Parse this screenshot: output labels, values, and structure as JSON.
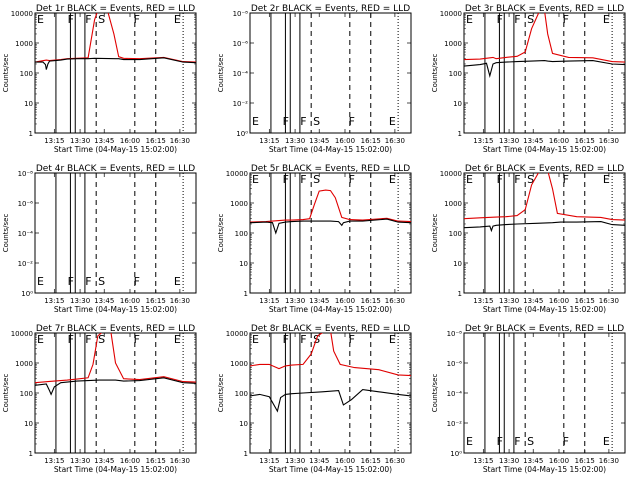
{
  "figure": {
    "colors": {
      "events": "#000000",
      "lld": "#e00000",
      "background": "#ffffff"
    },
    "xtick_labels": [
      "13:15",
      "13:30",
      "13:45",
      "16:00",
      "16:15",
      "16:30"
    ],
    "xlabel": "Start Time (04-May-15 15:02:00)",
    "ylabel": "Counts/sec",
    "ylabels_log": [
      "1",
      "10",
      "100",
      "1000",
      "10000"
    ],
    "ylabels_empty": [
      "10⁰",
      "10⁻²",
      "10⁻⁴",
      "10⁻⁶",
      "10⁻⁸"
    ],
    "event_letters": [
      "E",
      "F",
      "F",
      "S",
      "F",
      "E"
    ]
  },
  "chart_data": [
    {
      "id": "1r",
      "title": "Det 1r BLACK = Events, RED = LLD",
      "type": "line",
      "empty": false,
      "xlabel": "Start Time (04-May-15 15:02:00)",
      "ylabel": "Counts/sec",
      "ylim": [
        1,
        10000
      ],
      "yscale": "log",
      "series": [
        {
          "name": "LLD",
          "color": "#e00000",
          "x": [
            0,
            0.07,
            0.09,
            0.16,
            0.2,
            0.26,
            0.33,
            0.37,
            0.39,
            0.41,
            0.45,
            0.49,
            0.52,
            0.55,
            0.65,
            0.8,
            0.92,
            1
          ],
          "values": [
            230,
            270,
            260,
            280,
            300,
            310,
            320,
            6000,
            12000,
            12000,
            12000,
            2000,
            350,
            310,
            300,
            330,
            240,
            230
          ]
        },
        {
          "name": "Events",
          "color": "#000000",
          "x": [
            0,
            0.05,
            0.065,
            0.07,
            0.08,
            0.09,
            0.16,
            0.2,
            0.26,
            0.33,
            0.37,
            0.5,
            0.52,
            0.55,
            0.65,
            0.8,
            0.92,
            1
          ],
          "values": [
            230,
            230,
            190,
            130,
            200,
            250,
            270,
            290,
            300,
            300,
            310,
            300,
            300,
            280,
            280,
            320,
            230,
            220
          ]
        }
      ]
    },
    {
      "id": "2r",
      "title": "Det 2r BLACK = Events, RED = LLD",
      "type": "line",
      "empty": true,
      "series": []
    },
    {
      "id": "3r",
      "title": "Det 3r BLACK = Events, RED = LLD",
      "type": "line",
      "empty": false,
      "xlabel": "Start Time (04-May-15 15:02:00)",
      "ylabel": "Counts/sec",
      "ylim": [
        1,
        10000
      ],
      "yscale": "log",
      "series": [
        {
          "name": "LLD",
          "color": "#e00000",
          "x": [
            0,
            0.1,
            0.18,
            0.2,
            0.26,
            0.33,
            0.38,
            0.42,
            0.47,
            0.5,
            0.52,
            0.55,
            0.65,
            0.8,
            0.92,
            1
          ],
          "values": [
            280,
            290,
            330,
            300,
            330,
            360,
            500,
            3000,
            12000,
            12000,
            2000,
            450,
            330,
            320,
            240,
            230
          ]
        },
        {
          "name": "Events",
          "color": "#000000",
          "x": [
            0,
            0.1,
            0.14,
            0.16,
            0.18,
            0.2,
            0.26,
            0.33,
            0.42,
            0.5,
            0.52,
            0.55,
            0.65,
            0.8,
            0.92,
            1
          ],
          "values": [
            170,
            190,
            210,
            80,
            200,
            220,
            230,
            240,
            250,
            260,
            250,
            240,
            250,
            260,
            200,
            190
          ]
        }
      ]
    },
    {
      "id": "4r",
      "title": "Det 4r BLACK = Events, RED = LLD",
      "type": "line",
      "empty": true,
      "series": []
    },
    {
      "id": "5r",
      "title": "Det 5r BLACK = Events, RED = LLD",
      "type": "line",
      "empty": false,
      "xlabel": "Start Time (04-May-15 15:02:00)",
      "ylabel": "Counts/sec",
      "ylim": [
        1,
        10000
      ],
      "yscale": "log",
      "series": [
        {
          "name": "LLD",
          "color": "#e00000",
          "x": [
            0,
            0.1,
            0.18,
            0.22,
            0.26,
            0.33,
            0.37,
            0.4,
            0.43,
            0.47,
            0.5,
            0.53,
            0.57,
            0.62,
            0.7,
            0.85,
            0.92,
            1
          ],
          "values": [
            230,
            240,
            260,
            270,
            270,
            280,
            300,
            900,
            2500,
            2700,
            2600,
            1500,
            330,
            280,
            270,
            310,
            250,
            240
          ]
        },
        {
          "name": "Events",
          "color": "#000000",
          "x": [
            0,
            0.1,
            0.14,
            0.16,
            0.18,
            0.22,
            0.26,
            0.33,
            0.4,
            0.5,
            0.55,
            0.57,
            0.58,
            0.62,
            0.7,
            0.85,
            0.92,
            1
          ],
          "values": [
            220,
            230,
            220,
            100,
            210,
            230,
            240,
            250,
            250,
            250,
            240,
            180,
            220,
            250,
            250,
            290,
            230,
            220
          ]
        }
      ]
    },
    {
      "id": "6r",
      "title": "Det 6r BLACK = Events, RED = LLD",
      "type": "line",
      "empty": false,
      "xlabel": "Start Time (04-May-15 15:02:00)",
      "ylabel": "Counts/sec",
      "ylim": [
        1,
        10000
      ],
      "yscale": "log",
      "series": [
        {
          "name": "LLD",
          "color": "#e00000",
          "x": [
            0,
            0.1,
            0.2,
            0.26,
            0.33,
            0.38,
            0.42,
            0.47,
            0.52,
            0.55,
            0.58,
            0.7,
            0.85,
            0.92,
            1
          ],
          "values": [
            300,
            320,
            340,
            350,
            380,
            600,
            4000,
            12000,
            12000,
            3000,
            450,
            350,
            330,
            280,
            270
          ]
        },
        {
          "name": "Events",
          "color": "#000000",
          "x": [
            0,
            0.1,
            0.16,
            0.17,
            0.18,
            0.2,
            0.26,
            0.33,
            0.45,
            0.55,
            0.6,
            0.7,
            0.85,
            0.92,
            1
          ],
          "values": [
            150,
            160,
            170,
            120,
            170,
            180,
            190,
            200,
            210,
            220,
            230,
            230,
            240,
            190,
            180
          ]
        }
      ]
    },
    {
      "id": "7r",
      "title": "Det 7r BLACK = Events, RED = LLD",
      "type": "line",
      "empty": false,
      "xlabel": "Start Time (04-May-15 15:02:00)",
      "ylabel": "Counts/sec",
      "ylim": [
        1,
        10000
      ],
      "yscale": "log",
      "series": [
        {
          "name": "LLD",
          "color": "#e00000",
          "x": [
            0,
            0.08,
            0.16,
            0.2,
            0.26,
            0.33,
            0.36,
            0.39,
            0.43,
            0.47,
            0.5,
            0.55,
            0.65,
            0.8,
            0.92,
            1
          ],
          "values": [
            220,
            240,
            260,
            270,
            290,
            320,
            900,
            8000,
            12000,
            12000,
            1000,
            300,
            280,
            350,
            240,
            230
          ]
        },
        {
          "name": "Events",
          "color": "#000000",
          "x": [
            0,
            0.07,
            0.09,
            0.1,
            0.12,
            0.16,
            0.2,
            0.26,
            0.33,
            0.4,
            0.5,
            0.55,
            0.65,
            0.8,
            0.92,
            1
          ],
          "values": [
            180,
            200,
            120,
            90,
            160,
            220,
            230,
            250,
            260,
            270,
            270,
            250,
            260,
            320,
            220,
            210
          ]
        }
      ]
    },
    {
      "id": "8r",
      "title": "Det 8r BLACK = Events, RED = LLD",
      "type": "line",
      "empty": false,
      "xlabel": "Start Time (04-May-15 15:02:00)",
      "ylabel": "Counts/sec",
      "ylim": [
        1,
        10000
      ],
      "yscale": "log",
      "series": [
        {
          "name": "LLD",
          "color": "#e00000",
          "x": [
            0,
            0.06,
            0.12,
            0.18,
            0.22,
            0.26,
            0.33,
            0.38,
            0.42,
            0.47,
            0.5,
            0.52,
            0.56,
            0.65,
            0.8,
            0.92,
            1
          ],
          "values": [
            800,
            900,
            900,
            650,
            800,
            850,
            900,
            2000,
            8000,
            12000,
            12000,
            2500,
            900,
            700,
            600,
            400,
            380
          ]
        },
        {
          "name": "Events",
          "color": "#000000",
          "x": [
            0,
            0.06,
            0.12,
            0.17,
            0.19,
            0.22,
            0.26,
            0.33,
            0.45,
            0.55,
            0.58,
            0.63,
            0.7,
            0.8,
            0.92,
            1
          ],
          "values": [
            80,
            90,
            75,
            25,
            70,
            90,
            95,
            100,
            110,
            120,
            40,
            60,
            130,
            110,
            90,
            80
          ]
        }
      ]
    },
    {
      "id": "9r",
      "title": "Det 9r BLACK = Events, RED = LLD",
      "type": "line",
      "empty": true,
      "series": []
    }
  ]
}
